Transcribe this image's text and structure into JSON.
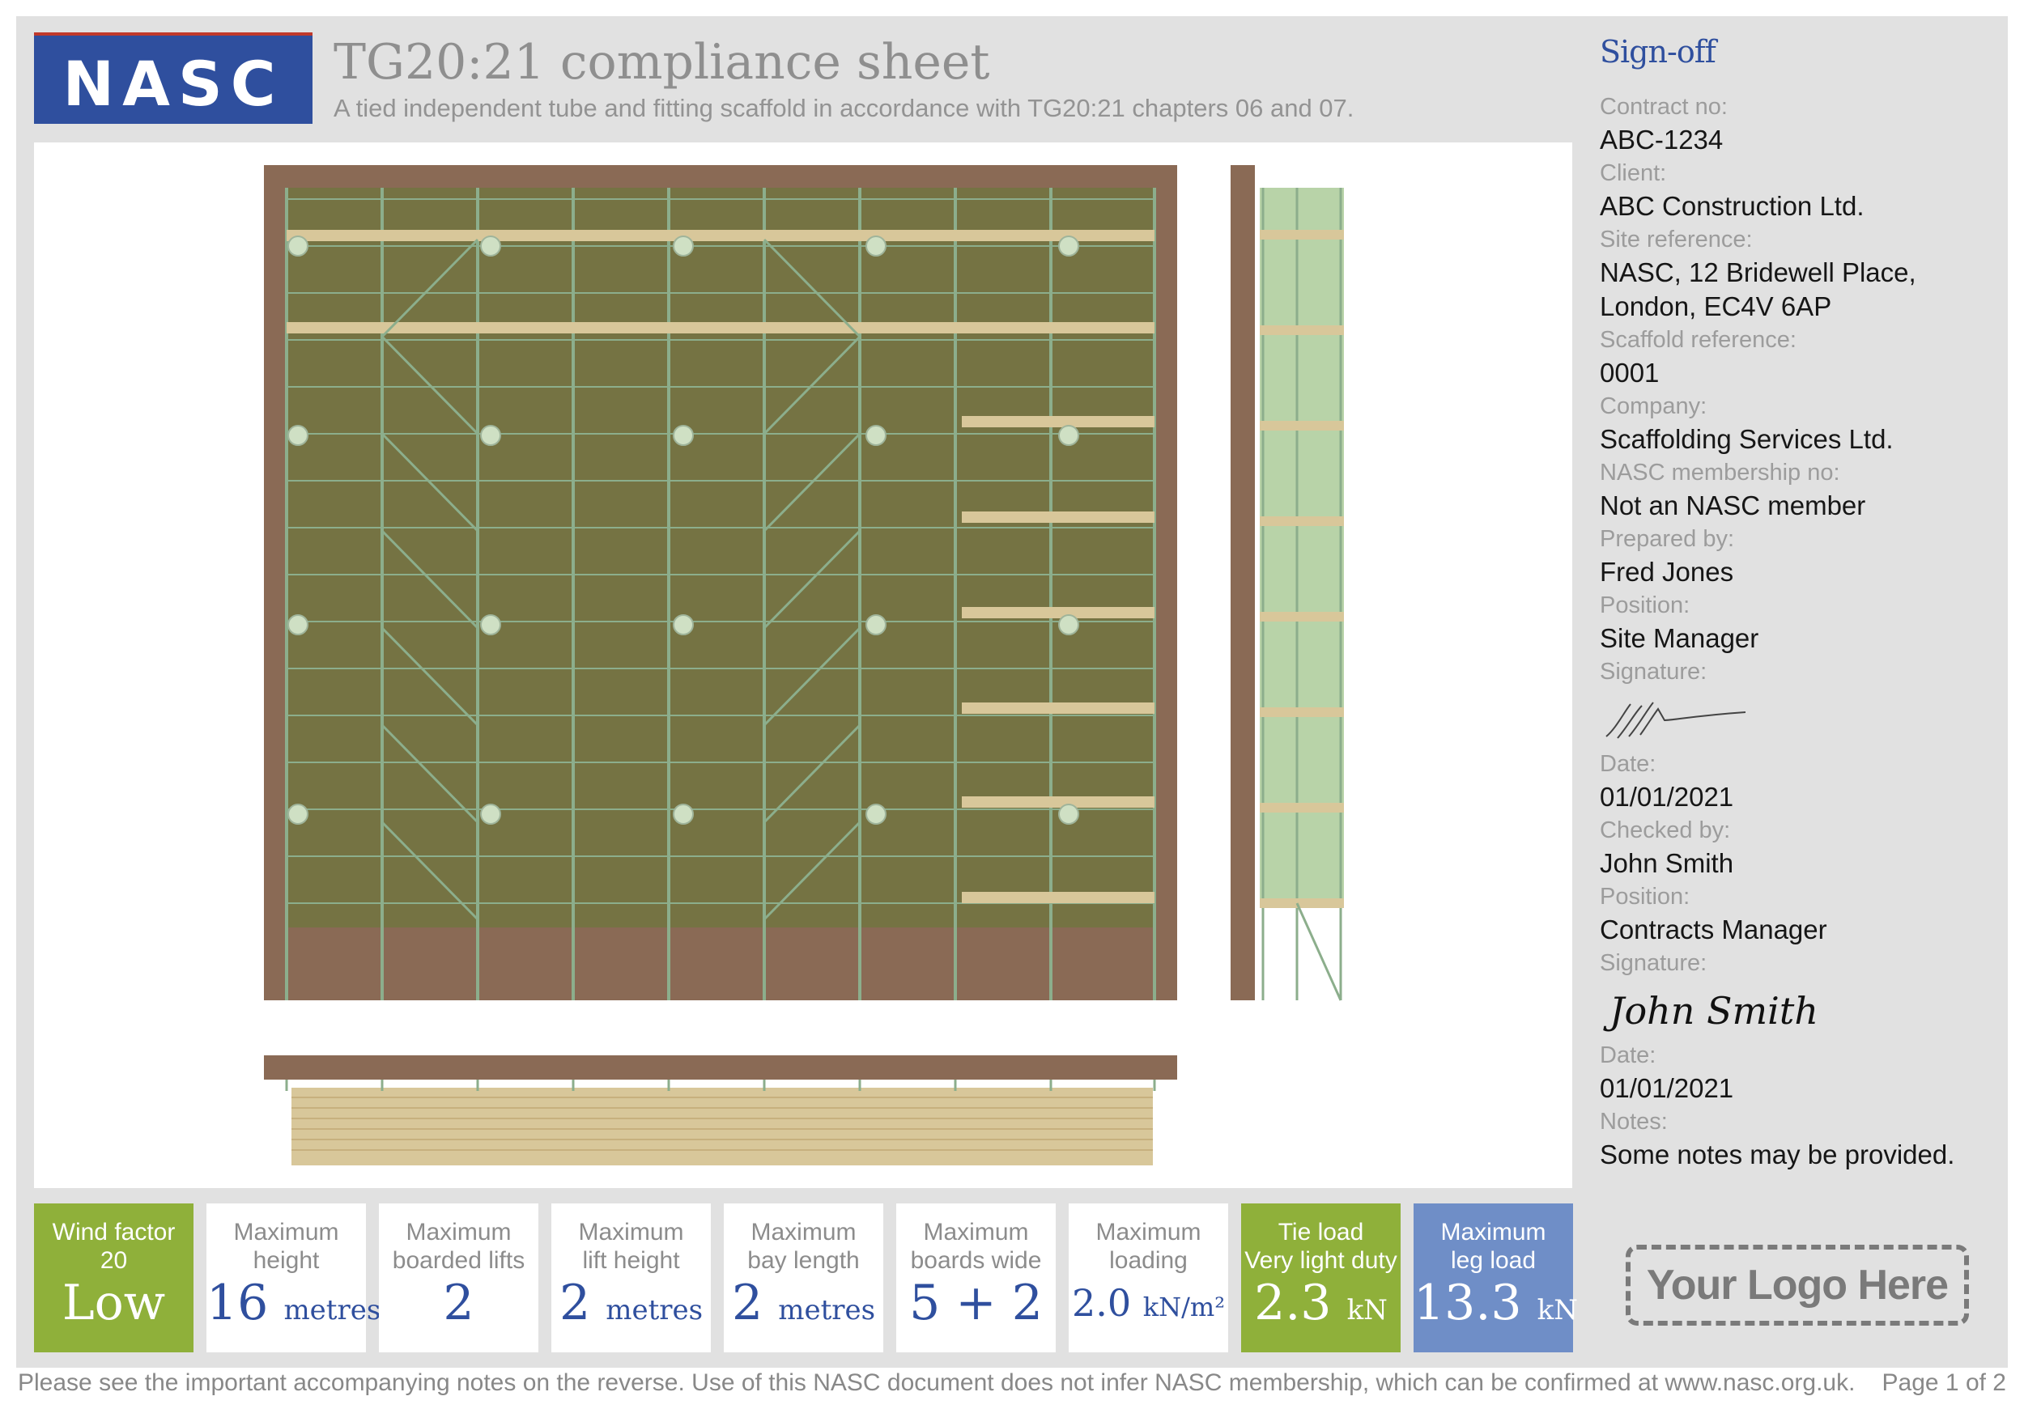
{
  "header": {
    "logo_text": "NASC",
    "title": "TG20:21 compliance sheet",
    "subtitle": "A tied independent tube and fitting scaffold in accordance with TG20:21 chapters 06 and 07."
  },
  "colors": {
    "brand_blue": "#2f4f9e",
    "wall_brown": "#8a6a55",
    "sheeting_olive": "#757343",
    "side_green": "#b8d3a8",
    "board_tan": "#d8c79a",
    "tube_green": "#8cae8c",
    "tile_green": "#8fb03a",
    "tile_blue": "#6f8ec7"
  },
  "signoff": {
    "heading": "Sign-off",
    "contract_no_label": "Contract no:",
    "contract_no": "ABC-1234",
    "client_label": "Client:",
    "client": "ABC Construction Ltd.",
    "site_reference_label": "Site reference:",
    "site_reference_line1": "NASC, 12 Bridewell Place,",
    "site_reference_line2": "London, EC4V 6AP",
    "scaffold_reference_label": "Scaffold reference:",
    "scaffold_reference": "0001",
    "company_label": "Company:",
    "company": "Scaffolding Services Ltd.",
    "membership_label": "NASC membership no:",
    "membership": "Not an NASC member",
    "prepared_by_label": "Prepared by:",
    "prepared_by": "Fred Jones",
    "position1_label": "Position:",
    "position1": "Site Manager",
    "signature1_label": "Signature:",
    "date1_label": "Date:",
    "date1": "01/01/2021",
    "checked_by_label": "Checked by:",
    "checked_by": "John Smith",
    "position2_label": "Position:",
    "position2": "Contracts Manager",
    "signature2_label": "Signature:",
    "signature2": "John Smith",
    "date2_label": "Date:",
    "date2": "01/01/2021",
    "notes_label": "Notes:",
    "notes": "Some notes may be provided."
  },
  "tiles": [
    {
      "line1": "Wind factor",
      "line2": "20",
      "value": "Low",
      "unit": "",
      "style": "green"
    },
    {
      "line1": "Maximum",
      "line2": "height",
      "value": "16",
      "unit": "metres",
      "style": "white"
    },
    {
      "line1": "Maximum",
      "line2": "boarded lifts",
      "value": "2",
      "unit": "",
      "style": "white"
    },
    {
      "line1": "Maximum",
      "line2": "lift height",
      "value": "2",
      "unit": "metres",
      "style": "white"
    },
    {
      "line1": "Maximum",
      "line2": "bay length",
      "value": "2",
      "unit": "metres",
      "style": "white"
    },
    {
      "line1": "Maximum",
      "line2": "boards wide",
      "value": "5 + 2",
      "unit": "",
      "style": "white"
    },
    {
      "line1": "Maximum",
      "line2": "loading",
      "value": "2.0",
      "unit": "kN/m²",
      "style": "white"
    },
    {
      "line1": "Tie load",
      "line2": "Very light duty",
      "value": "2.3",
      "unit": "kN",
      "style": "green"
    },
    {
      "line1": "Maximum",
      "line2": "leg load",
      "value": "13.3",
      "unit": "kN",
      "style": "blue"
    }
  ],
  "your_logo": "Your Logo Here",
  "footer": {
    "note": "Please see the important accompanying notes on the reverse. Use of this NASC document does not infer NASC membership, which can be confirmed at www.nasc.org.uk.",
    "page": "Page 1 of 2"
  }
}
